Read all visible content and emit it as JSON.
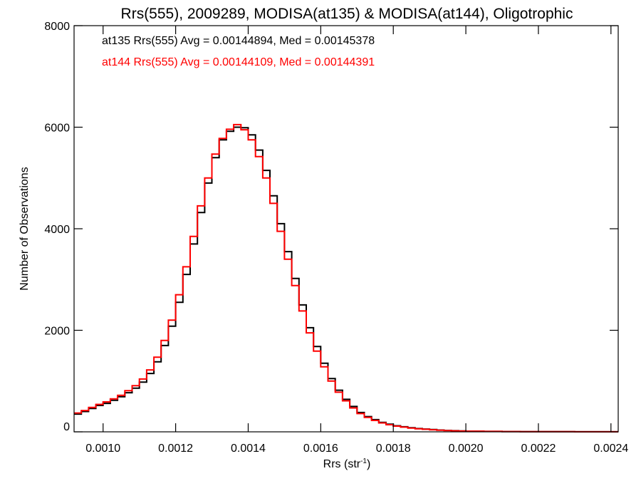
{
  "chart_data": {
    "type": "line",
    "title": "Rrs(555), 2009289, MODISA(at135) & MODISA(at144), Oligotrophic",
    "xlabel": "Rrs (str",
    "xlabel_sup": "-1",
    "xlabel_close": ")",
    "ylabel": "Number of Observations",
    "xlim": [
      0.00092,
      0.00242
    ],
    "ylim": [
      0,
      8000
    ],
    "xticks": [
      0.001,
      0.0012,
      0.0014,
      0.0016,
      0.0018,
      0.002,
      0.0022,
      0.0024
    ],
    "xtick_labels": [
      "0.0010",
      "0.0012",
      "0.0014",
      "0.0016",
      "0.0018",
      "0.0020",
      "0.0022",
      "0.0024"
    ],
    "yticks": [
      0,
      2000,
      4000,
      6000,
      8000
    ],
    "ytick_labels": [
      "0",
      "2000",
      "4000",
      "6000",
      "8000"
    ],
    "grid": false,
    "step": true,
    "annotations": [
      {
        "text": "at135 Rrs(555) Avg = 0.00144894, Med = 0.00145378",
        "color": "#000000"
      },
      {
        "text": "at144 Rrs(555) Avg = 0.00144109, Med = 0.00144391",
        "color": "#ff0000"
      }
    ],
    "series": [
      {
        "color": "#000000",
        "points": [
          [
            0.00092,
            350
          ],
          [
            0.00094,
            400
          ],
          [
            0.00096,
            460
          ],
          [
            0.00098,
            520
          ],
          [
            0.001,
            560
          ],
          [
            0.00102,
            620
          ],
          [
            0.00104,
            690
          ],
          [
            0.00106,
            770
          ],
          [
            0.00108,
            860
          ],
          [
            0.0011,
            980
          ],
          [
            0.00112,
            1150
          ],
          [
            0.00114,
            1380
          ],
          [
            0.00116,
            1700
          ],
          [
            0.00118,
            2080
          ],
          [
            0.0012,
            2550
          ],
          [
            0.00122,
            3100
          ],
          [
            0.00124,
            3700
          ],
          [
            0.00126,
            4320
          ],
          [
            0.00128,
            4900
          ],
          [
            0.0013,
            5400
          ],
          [
            0.00132,
            5750
          ],
          [
            0.00134,
            5920
          ],
          [
            0.00136,
            6000
          ],
          [
            0.00138,
            5990
          ],
          [
            0.0014,
            5850
          ],
          [
            0.00142,
            5550
          ],
          [
            0.00144,
            5150
          ],
          [
            0.00146,
            4650
          ],
          [
            0.00148,
            4100
          ],
          [
            0.0015,
            3550
          ],
          [
            0.00152,
            3020
          ],
          [
            0.00154,
            2500
          ],
          [
            0.00156,
            2050
          ],
          [
            0.00158,
            1680
          ],
          [
            0.0016,
            1350
          ],
          [
            0.00162,
            1050
          ],
          [
            0.00164,
            820
          ],
          [
            0.00166,
            640
          ],
          [
            0.00168,
            500
          ],
          [
            0.0017,
            380
          ],
          [
            0.00172,
            300
          ],
          [
            0.00174,
            240
          ],
          [
            0.00176,
            185
          ],
          [
            0.00178,
            150
          ],
          [
            0.0018,
            120
          ],
          [
            0.00182,
            100
          ],
          [
            0.00184,
            80
          ],
          [
            0.00186,
            65
          ],
          [
            0.00188,
            55
          ],
          [
            0.0019,
            45
          ],
          [
            0.00192,
            35
          ],
          [
            0.00194,
            28
          ],
          [
            0.00196,
            22
          ],
          [
            0.00198,
            17
          ],
          [
            0.002,
            13
          ],
          [
            0.00205,
            9
          ],
          [
            0.0021,
            6
          ],
          [
            0.00215,
            4
          ],
          [
            0.0022,
            3
          ],
          [
            0.0023,
            2
          ],
          [
            0.00242,
            1
          ]
        ]
      },
      {
        "color": "#ff0000",
        "points": [
          [
            0.00092,
            370
          ],
          [
            0.00094,
            420
          ],
          [
            0.00096,
            480
          ],
          [
            0.00098,
            540
          ],
          [
            0.001,
            590
          ],
          [
            0.00102,
            650
          ],
          [
            0.00104,
            720
          ],
          [
            0.00106,
            810
          ],
          [
            0.00108,
            910
          ],
          [
            0.0011,
            1040
          ],
          [
            0.00112,
            1220
          ],
          [
            0.00114,
            1470
          ],
          [
            0.00116,
            1800
          ],
          [
            0.00118,
            2200
          ],
          [
            0.0012,
            2700
          ],
          [
            0.00122,
            3250
          ],
          [
            0.00124,
            3850
          ],
          [
            0.00126,
            4450
          ],
          [
            0.00128,
            5000
          ],
          [
            0.0013,
            5470
          ],
          [
            0.00132,
            5780
          ],
          [
            0.00134,
            5960
          ],
          [
            0.00136,
            6050
          ],
          [
            0.00138,
            5950
          ],
          [
            0.0014,
            5750
          ],
          [
            0.00142,
            5420
          ],
          [
            0.00144,
            5000
          ],
          [
            0.00146,
            4500
          ],
          [
            0.00148,
            3950
          ],
          [
            0.0015,
            3400
          ],
          [
            0.00152,
            2880
          ],
          [
            0.00154,
            2380
          ],
          [
            0.00156,
            1950
          ],
          [
            0.00158,
            1590
          ],
          [
            0.0016,
            1280
          ],
          [
            0.00162,
            1000
          ],
          [
            0.00164,
            780
          ],
          [
            0.00166,
            610
          ],
          [
            0.00168,
            470
          ],
          [
            0.0017,
            360
          ],
          [
            0.00172,
            285
          ],
          [
            0.00174,
            225
          ],
          [
            0.00176,
            175
          ],
          [
            0.00178,
            140
          ],
          [
            0.0018,
            112
          ],
          [
            0.00182,
            92
          ],
          [
            0.00184,
            75
          ],
          [
            0.00186,
            60
          ],
          [
            0.00188,
            50
          ],
          [
            0.0019,
            40
          ],
          [
            0.00192,
            32
          ],
          [
            0.00194,
            25
          ],
          [
            0.00196,
            20
          ],
          [
            0.00198,
            15
          ],
          [
            0.002,
            12
          ],
          [
            0.00205,
            8
          ],
          [
            0.0021,
            5
          ],
          [
            0.00215,
            4
          ],
          [
            0.0022,
            3
          ],
          [
            0.0023,
            2
          ],
          [
            0.00242,
            1
          ]
        ]
      }
    ]
  }
}
